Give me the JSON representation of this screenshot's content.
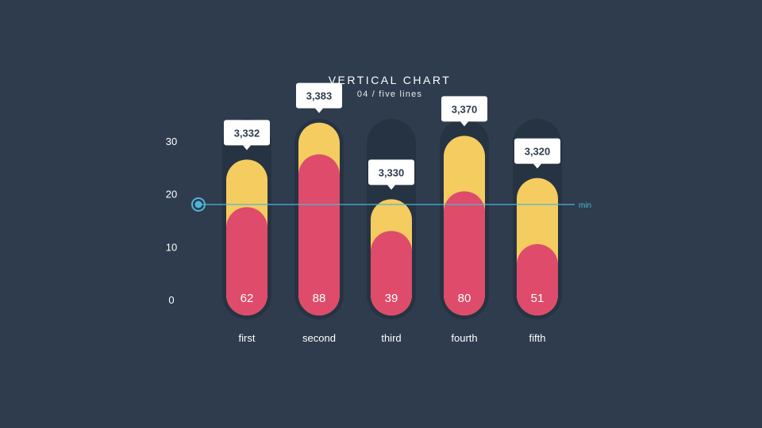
{
  "chart_data": {
    "type": "bar",
    "title": "VERTICAL CHART",
    "subtitle": "04 / five lines",
    "categories": [
      "first",
      "second",
      "third",
      "fourth",
      "fifth"
    ],
    "y_ticks": [
      "30",
      "20",
      "10",
      "0"
    ],
    "ylim": [
      0,
      30
    ],
    "series": [
      {
        "values": [
          26.5,
          33.5,
          19.0,
          31.0,
          23.0
        ]
      },
      {
        "values": [
          17.5,
          27.5,
          13.0,
          20.5,
          10.5
        ]
      }
    ],
    "bar_labels": [
      "62",
      "88",
      "39",
      "80",
      "51"
    ],
    "callouts": [
      "3,332",
      "3,383",
      "3,330",
      "3,370",
      "3,320"
    ],
    "reference_line": {
      "value": 18.0,
      "label": "min"
    },
    "grid": false,
    "legend": "none",
    "colors": {
      "background": "#2e3c4e",
      "track": "#263343",
      "yellow": "#f5cc5f",
      "red": "#df4b6a",
      "reference_line": "#4db6d6",
      "text": "#ffffff",
      "callout_bg": "#ffffff",
      "callout_text": "#2e3c4e"
    }
  }
}
